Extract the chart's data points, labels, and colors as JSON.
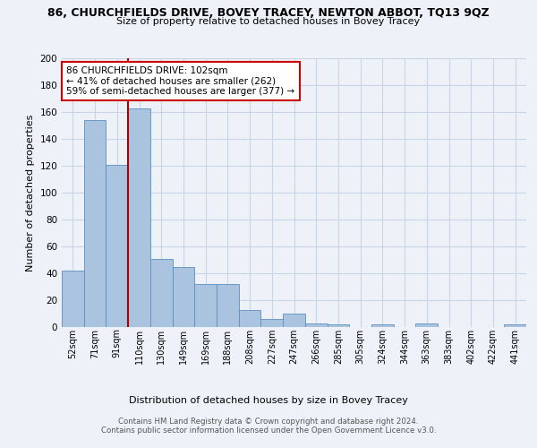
{
  "title": "86, CHURCHFIELDS DRIVE, BOVEY TRACEY, NEWTON ABBOT, TQ13 9QZ",
  "subtitle": "Size of property relative to detached houses in Bovey Tracey",
  "xlabel": "Distribution of detached houses by size in Bovey Tracey",
  "ylabel": "Number of detached properties",
  "bar_labels": [
    "52sqm",
    "71sqm",
    "91sqm",
    "110sqm",
    "130sqm",
    "149sqm",
    "169sqm",
    "188sqm",
    "208sqm",
    "227sqm",
    "247sqm",
    "266sqm",
    "285sqm",
    "305sqm",
    "324sqm",
    "344sqm",
    "363sqm",
    "383sqm",
    "402sqm",
    "422sqm",
    "441sqm"
  ],
  "bar_values": [
    42,
    154,
    121,
    163,
    51,
    45,
    32,
    32,
    13,
    6,
    10,
    3,
    2,
    0,
    2,
    0,
    3,
    0,
    0,
    0,
    2
  ],
  "bar_color": "#aac4e0",
  "bar_edge_color": "#5a8fc0",
  "ylim": [
    0,
    200
  ],
  "yticks": [
    0,
    20,
    40,
    60,
    80,
    100,
    120,
    140,
    160,
    180,
    200
  ],
  "vline_color": "#aa0000",
  "annotation_box_text": "86 CHURCHFIELDS DRIVE: 102sqm\n← 41% of detached houses are smaller (262)\n59% of semi-detached houses are larger (377) →",
  "annotation_box_edge_color": "#cc0000",
  "footer1": "Contains HM Land Registry data © Crown copyright and database right 2024.",
  "footer2": "Contains public sector information licensed under the Open Government Licence v3.0.",
  "bg_color": "#eef2f8",
  "grid_color": "#c8d4e8"
}
